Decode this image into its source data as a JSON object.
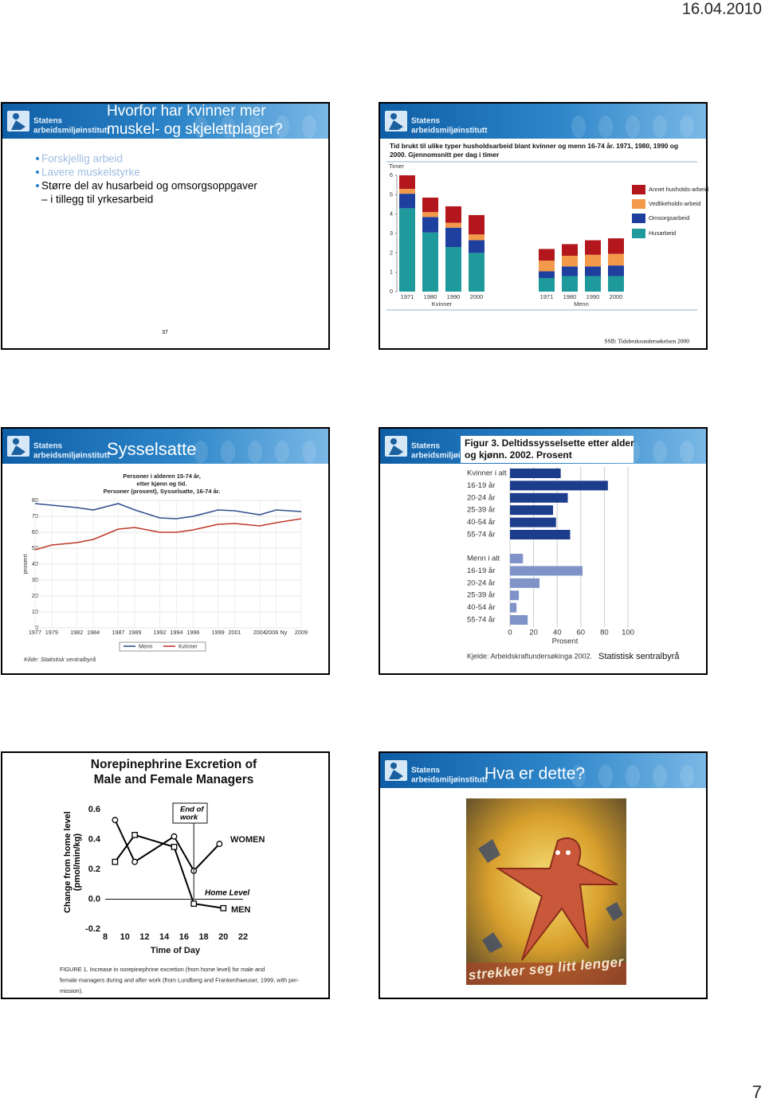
{
  "header": {
    "date": "16.04.2010"
  },
  "logo": [
    "Statens",
    "arbeidsmiljøinstitutt"
  ],
  "slides": [
    {
      "title": [
        "Hvorfor har kvinner mer",
        "muskel- og skjelettplager?"
      ],
      "bullets": [
        [
          "Forskjellig arbeid"
        ],
        [
          "Lavere muskelstyrke"
        ],
        [
          "Større del av husarbeid og omsorgsoppgaver",
          "– i tillegg til yrkesarbeid"
        ]
      ],
      "number": 37
    },
    {
      "chart": {
        "type": "bar",
        "stacked": true,
        "title": [
          "Tid brukt til ulike typer husholdsarbeid blant kvinner og menn 16-74 år. 1971, 1980, 1990 og",
          "2000. Gjennomsnitt per dag i timer"
        ],
        "ylabel": "Timer",
        "categories": [
          "1971",
          "1980",
          "1990",
          "2000",
          "1971",
          "1980",
          "1990",
          "2000"
        ],
        "groups": [
          "Kvinner",
          "Menn"
        ],
        "series": [
          {
            "name": "Husarbeid",
            "color": "#1f9a9c",
            "values": [
              4.3,
              3.05,
              2.3,
              2.0,
              0.7,
              0.8,
              0.8,
              0.8
            ]
          },
          {
            "name": "Omsorgsarbeid",
            "color": "#1f3f9f",
            "values": [
              0.75,
              0.8,
              1.0,
              0.65,
              0.35,
              0.5,
              0.5,
              0.55
            ]
          },
          {
            "name": "Vedlikeholds-arbeid",
            "color": "#f39a4a",
            "values": [
              0.25,
              0.25,
              0.25,
              0.3,
              0.55,
              0.55,
              0.6,
              0.6
            ]
          },
          {
            "name": "Annet husholds-arbeid",
            "color": "#b3171d",
            "values": [
              0.7,
              0.75,
              0.85,
              1.0,
              0.6,
              0.6,
              0.75,
              0.8
            ]
          }
        ],
        "ylim": [
          0,
          6
        ],
        "yticks": [
          0,
          1,
          2,
          3,
          4,
          5,
          6
        ]
      },
      "source": "SSB: Tidsbruksundersøkelsen 2000"
    },
    {
      "title": [
        "Sysselsatte"
      ],
      "chart": {
        "type": "line",
        "title": [
          "Personer i alderen 15-74 år,",
          "etter kjønn og tid.",
          "Personer (prosent), Sysselsatte, 16-74 år."
        ],
        "ylabel": "prosent",
        "x": [
          1977,
          1979,
          1982,
          1984,
          1987,
          1989,
          1992,
          1994,
          1996,
          1999,
          2001,
          2004,
          2006,
          2009
        ],
        "series": [
          {
            "name": "Menn",
            "color": "#34508f",
            "values": [
              78,
              77,
              75.5,
              74,
              78,
              74,
              69,
              68.5,
              70,
              74,
              73.5,
              71,
              74,
              73
            ]
          },
          {
            "name": "Kvinner",
            "color": "#c0392b",
            "values": [
              49,
              52,
              53.5,
              55.5,
              62,
              63,
              60,
              60,
              61.5,
              65,
              65.5,
              64,
              66,
              68.5
            ]
          }
        ],
        "xlim": [
          1977,
          2009
        ],
        "xticks": [
          1977,
          1979,
          1982,
          1984,
          1987,
          1989,
          1992,
          1994,
          1996,
          1999,
          2001,
          2004,
          {
            "value": 2006,
            "label": "2006 Ny"
          },
          2009
        ],
        "ylim": [
          0,
          80
        ],
        "yticks": [
          0,
          10,
          20,
          30,
          40,
          50,
          60,
          70,
          80
        ],
        "grid": true,
        "source": "Kilde: Statistisk sentralbyrå"
      }
    },
    {
      "chart": {
        "type": "bar",
        "orientation": "horizontal",
        "title": [
          "Figur 3. Deltidssysselsette etter alder",
          "og kjønn. 2002. Prosent"
        ],
        "series": [
          {
            "color": "#1c3c8c",
            "categories": [
              "Kvinner i alt",
              "16-19 år",
              "20-24 år",
              "25-39 år",
              "40-54 år",
              "55-74 år"
            ],
            "values": [
              43,
              83,
              49,
              36.5,
              39,
              51
            ]
          },
          {
            "color": "#7f93c9",
            "categories": [
              "Menn i alt",
              "16-19 år",
              "20-24 år",
              "25-39 år",
              "40-54 år",
              "55-74 år"
            ],
            "values": [
              11,
              61.5,
              25,
              7.5,
              5.5,
              15
            ]
          }
        ],
        "xlabel": "Prosent",
        "xlim": [
          0,
          100
        ],
        "xticks": [
          0,
          20,
          40,
          60,
          80,
          100
        ],
        "grid": true
      },
      "source": [
        "Kjelde: Arbeidskraftundersøkinga 2002.",
        "Statistisk sentralbyrå"
      ]
    },
    {
      "chart": {
        "type": "line",
        "title": [
          "Norepinephrine Excretion of",
          "Male and Female Managers"
        ],
        "ylabel": [
          "Change from home level",
          "(pmol/min/kg)"
        ],
        "xlabel": "Time of Day",
        "series": [
          {
            "name": "WOMEN",
            "color": "#000000",
            "marker": "circle",
            "x": [
              9,
              11,
              15,
              17,
              19.6
            ],
            "values": [
              0.53,
              0.25,
              0.42,
              0.19,
              0.37
            ]
          },
          {
            "name": "MEN",
            "color": "#000000",
            "marker": "square",
            "x": [
              9,
              11,
              15,
              17,
              20
            ],
            "values": [
              0.25,
              0.43,
              0.35,
              -0.03,
              -0.06
            ]
          }
        ],
        "xlim": [
          8,
          22
        ],
        "xticks": [
          8,
          10,
          12,
          14,
          16,
          18,
          20,
          22
        ],
        "ylim": [
          -0.2,
          0.6
        ],
        "yticks": [
          -0.2,
          {
            "value": 0,
            "label": "0.0"
          },
          0.2,
          0.4,
          0.6
        ],
        "annotations": [
          {
            "text": [
              "End of",
              "work"
            ],
            "x": 17
          },
          {
            "text": [
              "Home Level"
            ],
            "y": 0
          }
        ],
        "caption": [
          "FIGURE 1. Increase in norepinephrine excretion (from home level) for male and",
          "female managers during and after work (from Lundberg and Frankenhaeuser, 1999, with per-",
          "mission)."
        ]
      }
    },
    {
      "title": [
        "Hva er dette?"
      ],
      "image_text": "strekker seg litt lenger"
    }
  ],
  "footer": {
    "page": 7
  }
}
